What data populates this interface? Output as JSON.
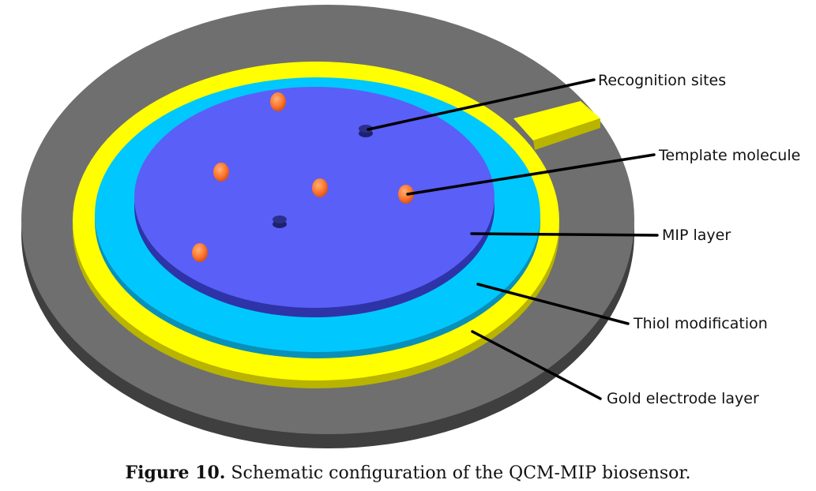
{
  "labels": {
    "recognition_sites": "Recognition sites",
    "template_molecule": "Template molecule",
    "mip_layer": "MIP layer",
    "thiol_modification": "Thiol modification",
    "gold_electrode_layer": "Gold electrode layer"
  },
  "caption": {
    "prefix": "Figure 10.",
    "text": "Schematic configuration of the QCM-MIP biosensor."
  },
  "colors": {
    "substrate_top": "#6f6f6f",
    "substrate_side": "#3f3f3f",
    "gold": "#ffff00",
    "gold_side": "#b8b400",
    "thiol": "#00c8ff",
    "thiol_side": "#0a8fb8",
    "mip": "#5a5ff7",
    "mip_side": "#2e33a8",
    "template": "#ff7a2e",
    "site": "#2b2f8a"
  }
}
